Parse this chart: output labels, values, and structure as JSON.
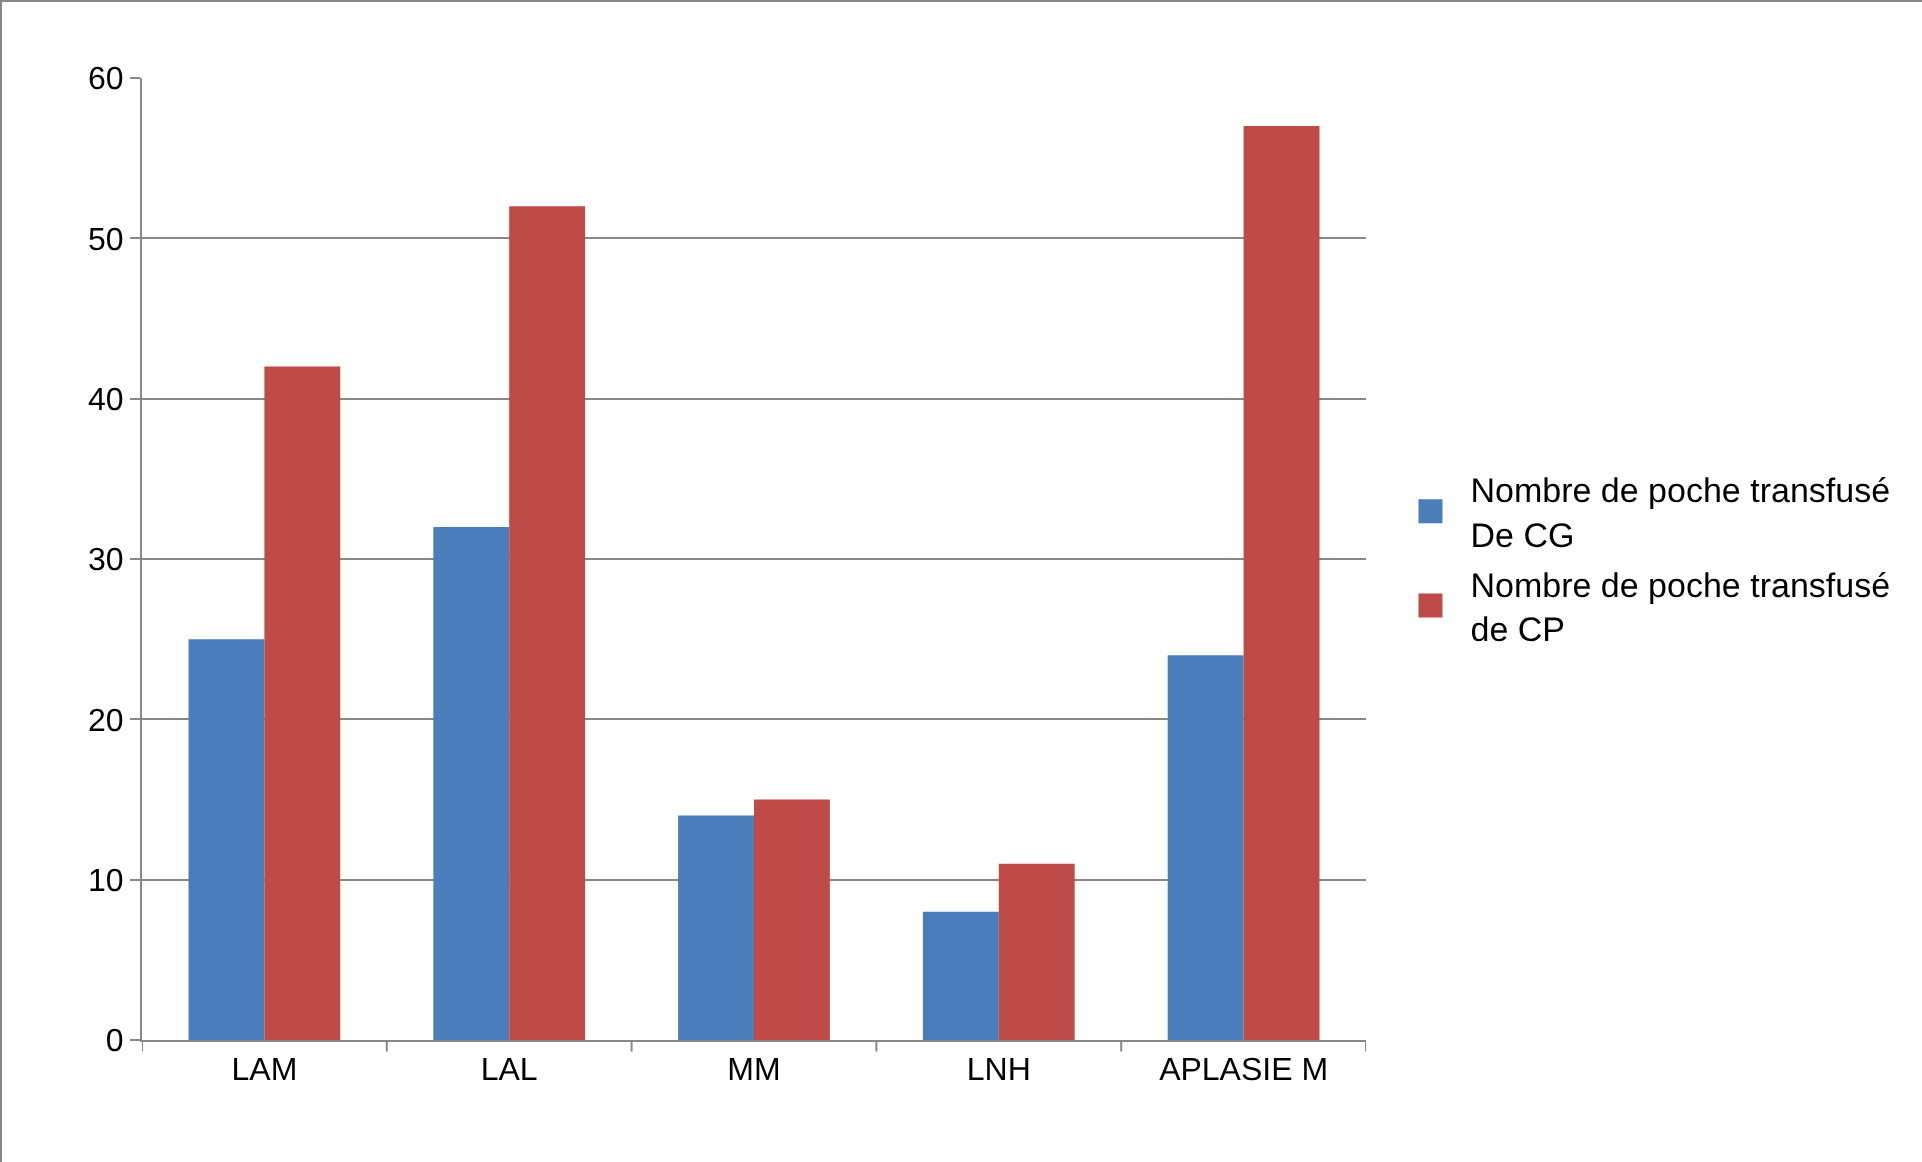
{
  "chart_data": {
    "type": "bar",
    "categories": [
      "LAM",
      "LAL",
      "MM",
      "LNH",
      "APLASIE M"
    ],
    "series": [
      {
        "name": "Nombre de poche transfusé De CG",
        "color": "#4a7ebb",
        "values": [
          25,
          32,
          14,
          8,
          24
        ]
      },
      {
        "name": "Nombre de poche transfusé de CP",
        "color": "#be4b48",
        "values": [
          42,
          52,
          15,
          11,
          57
        ]
      }
    ],
    "ylim": [
      0,
      60
    ],
    "yticks": [
      0,
      10,
      20,
      30,
      40,
      50,
      60
    ],
    "grid": "y",
    "legend": "right"
  }
}
